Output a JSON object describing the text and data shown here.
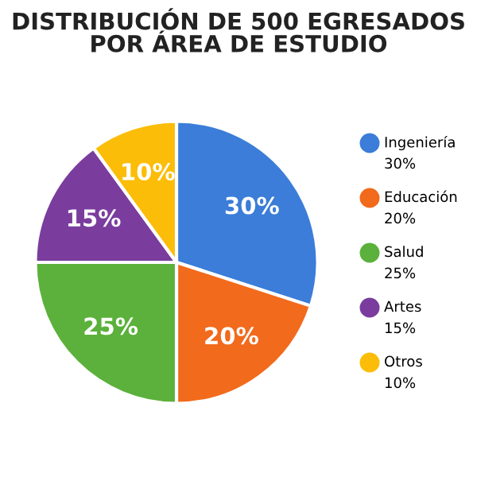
{
  "chart_data": {
    "type": "pie",
    "title": "DISTRIBUCIÓN DE 500 EGRESADOS\nPOR ÁREA DE ESTUDIO",
    "categories": [
      "Ingeniería",
      "Educación",
      "Salud",
      "Artes",
      "Otros"
    ],
    "values": [
      30,
      20,
      25,
      15,
      10
    ],
    "value_labels": [
      "30%",
      "20%",
      "25%",
      "15%",
      "10%"
    ],
    "colors": [
      "#3b7dd8",
      "#f26a1b",
      "#5bb13b",
      "#7a3d9e",
      "#fbbd08"
    ],
    "legend": "right"
  }
}
